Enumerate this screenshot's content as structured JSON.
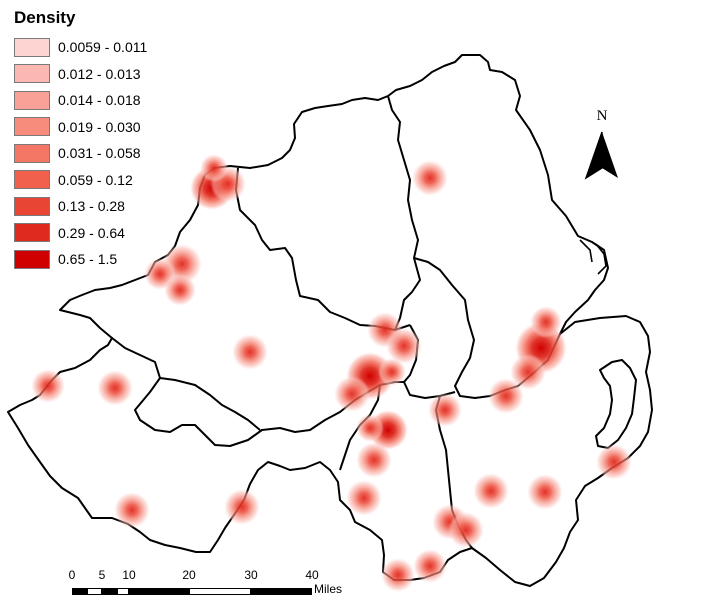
{
  "legend": {
    "title": "Density",
    "classes": [
      {
        "label": "0.0059 - 0.011",
        "color": "#fdd4d2"
      },
      {
        "label": "0.012 - 0.013",
        "color": "#fbb7b1"
      },
      {
        "label": "0.014 - 0.018",
        "color": "#f9a196"
      },
      {
        "label": "0.019 - 0.030",
        "color": "#f78c7d"
      },
      {
        "label": "0.031 - 0.058",
        "color": "#f47664"
      },
      {
        "label": "0.059 - 0.12",
        "color": "#f0604d"
      },
      {
        "label": "0.13 - 0.28",
        "color": "#e84535"
      },
      {
        "label": "0.29 - 0.64",
        "color": "#df2a20"
      },
      {
        "label": "0.65 - 1.5",
        "color": "#cf0000"
      }
    ]
  },
  "north_arrow": {
    "label": "N"
  },
  "scale_bar": {
    "ticks": [
      "0",
      "5",
      "10",
      "20",
      "30",
      "40"
    ],
    "units": "Miles"
  }
}
